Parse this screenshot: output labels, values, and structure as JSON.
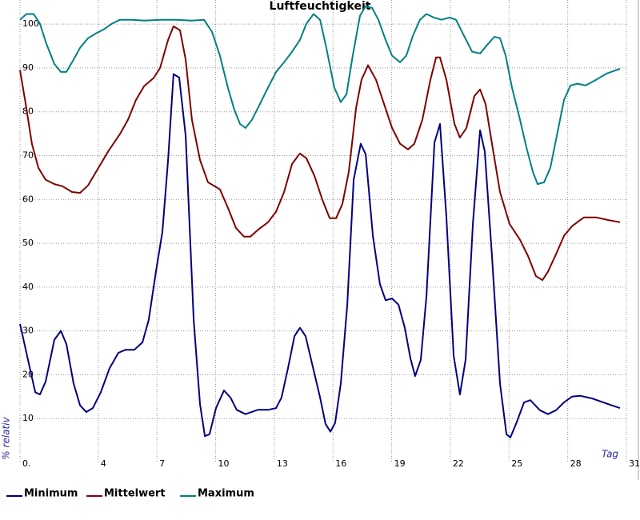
{
  "chart_data": {
    "type": "line",
    "title": "Luftfeuchtigkeit",
    "x_label": "Tag",
    "y_label": "% relativ",
    "xlim": [
      0,
      31
    ],
    "ylim": [
      0,
      105.5
    ],
    "xticks": [
      {
        "value": 0,
        "label": "0."
      },
      4,
      7,
      10,
      13,
      16,
      19,
      22,
      25,
      28,
      31
    ],
    "yticks": [
      10,
      20,
      30,
      40,
      50,
      60,
      70,
      80,
      90,
      100
    ],
    "grid": true,
    "series": [
      {
        "name": "Minimum",
        "color": "#000080",
        "x": [
          0,
          0.41,
          0.78,
          1.02,
          1.31,
          1.76,
          2.09,
          2.37,
          2.74,
          3.07,
          3.39,
          3.72,
          4.13,
          4.58,
          5.03,
          5.4,
          5.85,
          6.26,
          6.58,
          6.95,
          7.28,
          7.57,
          7.85,
          8.14,
          8.47,
          8.88,
          9.2,
          9.45,
          9.69,
          10.02,
          10.43,
          10.76,
          11.08,
          11.53,
          12.15,
          12.68,
          13.09,
          13.37,
          13.7,
          14.03,
          14.31,
          14.6,
          14.93,
          15.34,
          15.62,
          15.87,
          16.11,
          16.4,
          16.73,
          17.06,
          17.42,
          17.67,
          18.04,
          18.4,
          18.69,
          19.02,
          19.35,
          19.67,
          19.96,
          20.2,
          20.49,
          20.78,
          21.19,
          21.47,
          21.8,
          22.17,
          22.49,
          22.78,
          23.15,
          23.52,
          23.76,
          24.13,
          24.54,
          24.87,
          25.07,
          25.36,
          25.77,
          26.09,
          26.58,
          26.99,
          27.4,
          27.81,
          28.22,
          28.63,
          29.24,
          30.06,
          30.67
        ],
        "values": [
          31.6,
          23.4,
          16,
          15.5,
          18.4,
          28,
          30,
          27,
          18,
          13,
          11.5,
          12.4,
          16,
          21.5,
          25,
          25.7,
          25.7,
          27.4,
          32.5,
          43.5,
          52.6,
          69,
          88.6,
          87.8,
          74.5,
          32.5,
          13.3,
          6,
          6.4,
          12.4,
          16.4,
          14.8,
          12,
          11,
          12,
          12,
          12.4,
          14.8,
          21.5,
          28.8,
          30.7,
          28.8,
          22.5,
          14.8,
          8.8,
          7,
          9,
          18,
          36,
          64.5,
          72.7,
          70.3,
          51.7,
          40.7,
          37,
          37.4,
          36,
          30.7,
          23.7,
          19.7,
          23.4,
          38,
          73,
          77.2,
          56,
          24.3,
          15.5,
          23.4,
          54.4,
          75.8,
          70.9,
          47,
          18,
          6.4,
          5.7,
          8.8,
          13.7,
          14.2,
          11.9,
          11,
          11.9,
          13.7,
          15,
          15.2,
          14.6,
          13.3,
          12.4
        ]
      },
      {
        "name": "Mittelwert",
        "color": "#800000",
        "x": [
          0,
          0.29,
          0.61,
          0.94,
          1.31,
          1.76,
          2.17,
          2.66,
          3.07,
          3.48,
          3.89,
          4.5,
          5.11,
          5.52,
          5.93,
          6.34,
          6.83,
          7.16,
          7.57,
          7.85,
          8.18,
          8.47,
          8.79,
          9.2,
          9.61,
          10.22,
          10.63,
          11.04,
          11.45,
          11.78,
          12.15,
          12.68,
          13.09,
          13.5,
          13.91,
          14.31,
          14.64,
          15.05,
          15.46,
          15.83,
          16.16,
          16.48,
          16.81,
          17.18,
          17.46,
          17.79,
          18.2,
          18.61,
          19.02,
          19.43,
          19.84,
          20.16,
          20.57,
          20.98,
          21.27,
          21.47,
          21.8,
          22.21,
          22.49,
          22.82,
          23.23,
          23.52,
          23.8,
          24.13,
          24.54,
          25.03,
          25.56,
          25.97,
          26.38,
          26.71,
          26.99,
          27.4,
          27.81,
          28.22,
          28.83,
          29.45,
          30.06,
          30.67
        ],
        "values": [
          89.5,
          81.8,
          72.7,
          67.2,
          64.5,
          63.5,
          63,
          61.7,
          61.5,
          63.2,
          66.3,
          70.9,
          74.9,
          78.2,
          82.7,
          85.8,
          87.7,
          90,
          96.4,
          99.5,
          98.6,
          91.9,
          78.2,
          69,
          63.9,
          62.3,
          58.1,
          53.5,
          51.5,
          51.5,
          53,
          54.8,
          57.2,
          61.7,
          68.1,
          70.5,
          69.4,
          65.4,
          59.9,
          55.7,
          55.7,
          59,
          66.3,
          80.9,
          87.3,
          90.6,
          87.3,
          81.8,
          76.3,
          72.7,
          71.4,
          72.7,
          78.2,
          87.3,
          92.4,
          92.4,
          87.3,
          77.2,
          74.1,
          76.3,
          83.6,
          85.1,
          81.8,
          72.7,
          61.7,
          54.4,
          50.8,
          47.1,
          42.5,
          41.6,
          43.5,
          47.5,
          51.7,
          53.9,
          55.9,
          55.9,
          55.3,
          54.8
        ]
      },
      {
        "name": "Maximum",
        "color": "#008080",
        "x": [
          0,
          0.33,
          0.7,
          1.02,
          1.35,
          1.76,
          2.09,
          2.37,
          2.74,
          3.07,
          3.48,
          3.89,
          4.29,
          4.7,
          5.11,
          5.73,
          6.34,
          7.16,
          7.98,
          8.79,
          9.41,
          9.82,
          10.22,
          10.63,
          10.96,
          11.25,
          11.53,
          11.86,
          12.27,
          12.68,
          13.09,
          13.5,
          13.91,
          14.31,
          14.64,
          15.01,
          15.34,
          15.66,
          16.07,
          16.4,
          16.69,
          17.01,
          17.38,
          17.67,
          18,
          18.32,
          18.69,
          19.02,
          19.43,
          19.75,
          20.08,
          20.45,
          20.78,
          21.15,
          21.55,
          21.96,
          22.29,
          22.7,
          23.11,
          23.52,
          23.93,
          24.25,
          24.54,
          24.83,
          25.15,
          25.56,
          25.89,
          26.22,
          26.46,
          26.79,
          27.11,
          27.44,
          27.81,
          28.14,
          28.51,
          28.92,
          29.45,
          29.98,
          30.67
        ],
        "values": [
          101,
          102.3,
          102.3,
          100.1,
          95.5,
          90.9,
          89.1,
          89.1,
          91.9,
          94.6,
          96.8,
          97.9,
          98.8,
          100.1,
          101,
          101,
          100.8,
          101,
          101,
          100.8,
          101,
          98.2,
          92.8,
          85.5,
          80.4,
          77.2,
          76.3,
          78.2,
          81.8,
          85.5,
          89.1,
          91.3,
          93.7,
          96.4,
          100.1,
          102.3,
          101,
          94.6,
          85.5,
          82.2,
          84,
          92.8,
          101.9,
          104.1,
          103.7,
          101,
          96.4,
          92.8,
          91.3,
          92.8,
          97.3,
          101,
          102.3,
          101.5,
          101,
          101.5,
          101,
          97.3,
          93.7,
          93.3,
          95.5,
          97.1,
          96.8,
          92.8,
          85.5,
          78.2,
          71.8,
          66.3,
          63.5,
          63.9,
          67.2,
          74.5,
          82.7,
          86,
          86.4,
          86,
          87.3,
          88.7,
          89.8
        ]
      }
    ]
  }
}
